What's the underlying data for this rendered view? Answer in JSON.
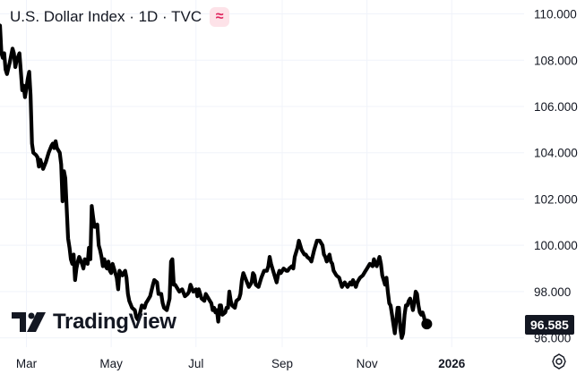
{
  "header": {
    "title": "U.S. Dollar Index · 1D · TVC",
    "badge_glyph": "≈"
  },
  "logo": {
    "text": "TradingView",
    "icon": "tradingview-logo-icon"
  },
  "price_tag": {
    "value": "96.585"
  },
  "settings": {
    "icon": "gear-icon"
  },
  "colors": {
    "line": "#000000",
    "text": "#131722",
    "grid": "#f0f3fa",
    "badge_bg": "#fde2e8",
    "badge_fg": "#e0245e"
  },
  "chart_data": {
    "type": "line",
    "title": "U.S. Dollar Index · 1D · TVC",
    "xlabel": "",
    "ylabel": "",
    "ylim": [
      95.6,
      110.6
    ],
    "xlim": [
      "2025-02-10",
      "2026-02-22"
    ],
    "yticks": [
      96,
      98,
      100,
      102,
      104,
      106,
      108,
      110
    ],
    "ytick_labels": [
      "96.000",
      "98.000",
      "100.000",
      "102.000",
      "104.000",
      "106.000",
      "108.000",
      "110.000"
    ],
    "xticks": [
      "2025-03-01",
      "2025-05-01",
      "2025-07-01",
      "2025-09-01",
      "2025-11-01",
      "2026-01-01"
    ],
    "xtick_labels": [
      "Mar",
      "May",
      "Jul",
      "Sep",
      "Nov",
      "2026"
    ],
    "bold_xtick": "2026",
    "last_value": 96.585,
    "grid": true,
    "points": [
      [
        "2025-02-10",
        109.5
      ],
      [
        "2025-02-11",
        108.3
      ],
      [
        "2025-02-12",
        108.1
      ],
      [
        "2025-02-13",
        108.3
      ],
      [
        "2025-02-14",
        107.6
      ],
      [
        "2025-02-15",
        107.4
      ],
      [
        "2025-02-17",
        107.9
      ],
      [
        "2025-02-18",
        108.2
      ],
      [
        "2025-02-19",
        108.5
      ],
      [
        "2025-02-20",
        108.3
      ],
      [
        "2025-02-21",
        107.7
      ],
      [
        "2025-02-22",
        108.0
      ],
      [
        "2025-02-24",
        108.3
      ],
      [
        "2025-02-25",
        107.5
      ],
      [
        "2025-02-26",
        106.7
      ],
      [
        "2025-02-27",
        106.9
      ],
      [
        "2025-02-28",
        106.4
      ],
      [
        "2025-03-01",
        106.8
      ],
      [
        "2025-03-02",
        107.2
      ],
      [
        "2025-03-03",
        107.5
      ],
      [
        "2025-03-04",
        106.5
      ],
      [
        "2025-03-05",
        104.4
      ],
      [
        "2025-03-06",
        104.0
      ],
      [
        "2025-03-08",
        103.9
      ],
      [
        "2025-03-09",
        103.8
      ],
      [
        "2025-03-10",
        103.4
      ],
      [
        "2025-03-11",
        103.7
      ],
      [
        "2025-03-13",
        103.3
      ],
      [
        "2025-03-15",
        103.6
      ],
      [
        "2025-03-17",
        104.0
      ],
      [
        "2025-03-19",
        104.3
      ],
      [
        "2025-03-20",
        104.4
      ],
      [
        "2025-03-21",
        104.2
      ],
      [
        "2025-03-22",
        104.5
      ],
      [
        "2025-03-23",
        104.2
      ],
      [
        "2025-03-25",
        104.0
      ],
      [
        "2025-03-26",
        103.5
      ],
      [
        "2025-03-27",
        101.9
      ],
      [
        "2025-03-28",
        103.2
      ],
      [
        "2025-03-29",
        102.9
      ],
      [
        "2025-03-31",
        100.3
      ],
      [
        "2025-04-01",
        99.9
      ],
      [
        "2025-04-02",
        99.4
      ],
      [
        "2025-04-03",
        99.2
      ],
      [
        "2025-04-04",
        99.6
      ],
      [
        "2025-04-05",
        98.5
      ],
      [
        "2025-04-06",
        99.0
      ],
      [
        "2025-04-07",
        99.3
      ],
      [
        "2025-04-08",
        99.5
      ],
      [
        "2025-04-10",
        99.2
      ],
      [
        "2025-04-11",
        99.0
      ],
      [
        "2025-04-12",
        99.4
      ],
      [
        "2025-04-14",
        99.2
      ],
      [
        "2025-04-15",
        99.9
      ],
      [
        "2025-04-16",
        99.4
      ],
      [
        "2025-04-17",
        101.7
      ],
      [
        "2025-04-18",
        101.2
      ],
      [
        "2025-04-19",
        100.8
      ],
      [
        "2025-04-20",
        100.8
      ],
      [
        "2025-04-21",
        100.9
      ],
      [
        "2025-04-22",
        100.0
      ],
      [
        "2025-04-23",
        99.8
      ],
      [
        "2025-04-24",
        99.5
      ],
      [
        "2025-04-25",
        99.1
      ],
      [
        "2025-04-26",
        99.4
      ],
      [
        "2025-04-27",
        99.1
      ],
      [
        "2025-04-28",
        99.0
      ],
      [
        "2025-04-29",
        99.3
      ],
      [
        "2025-04-30",
        98.9
      ],
      [
        "2025-05-01",
        98.8
      ],
      [
        "2025-05-02",
        99.2
      ],
      [
        "2025-05-03",
        99.0
      ],
      [
        "2025-05-05",
        98.6
      ],
      [
        "2025-05-06",
        98.1
      ],
      [
        "2025-05-07",
        98.9
      ],
      [
        "2025-05-09",
        98.7
      ],
      [
        "2025-05-11",
        98.9
      ],
      [
        "2025-05-12",
        98.6
      ],
      [
        "2025-05-13",
        97.9
      ],
      [
        "2025-05-14",
        97.6
      ],
      [
        "2025-05-16",
        97.3
      ],
      [
        "2025-05-18",
        97.2
      ],
      [
        "2025-05-19",
        96.9
      ],
      [
        "2025-05-20",
        96.8
      ],
      [
        "2025-05-21",
        96.9
      ],
      [
        "2025-05-23",
        97.4
      ],
      [
        "2025-05-25",
        97.3
      ],
      [
        "2025-05-26",
        97.5
      ],
      [
        "2025-05-27",
        97.6
      ],
      [
        "2025-05-29",
        97.8
      ],
      [
        "2025-05-31",
        98.3
      ],
      [
        "2025-06-01",
        98.5
      ],
      [
        "2025-06-03",
        98.4
      ],
      [
        "2025-06-04",
        97.9
      ],
      [
        "2025-06-06",
        97.9
      ],
      [
        "2025-06-07",
        97.5
      ],
      [
        "2025-06-08",
        97.3
      ],
      [
        "2025-06-10",
        97.2
      ],
      [
        "2025-06-12",
        97.7
      ],
      [
        "2025-06-13",
        99.3
      ],
      [
        "2025-06-14",
        99.4
      ],
      [
        "2025-06-15",
        98.3
      ],
      [
        "2025-06-16",
        98.3
      ],
      [
        "2025-06-18",
        98.1
      ],
      [
        "2025-06-19",
        98.0
      ],
      [
        "2025-06-21",
        98.1
      ],
      [
        "2025-06-23",
        97.8
      ],
      [
        "2025-06-25",
        97.9
      ],
      [
        "2025-06-26",
        98.0
      ],
      [
        "2025-06-27",
        98.3
      ],
      [
        "2025-06-29",
        98.0
      ],
      [
        "2025-07-01",
        98.1
      ],
      [
        "2025-07-02",
        97.8
      ],
      [
        "2025-07-03",
        98.1
      ],
      [
        "2025-07-05",
        97.7
      ],
      [
        "2025-07-07",
        97.6
      ],
      [
        "2025-07-08",
        97.9
      ],
      [
        "2025-07-09",
        97.8
      ],
      [
        "2025-07-11",
        97.6
      ],
      [
        "2025-07-12",
        97.5
      ],
      [
        "2025-07-13",
        97.2
      ],
      [
        "2025-07-14",
        97.3
      ],
      [
        "2025-07-15",
        97.1
      ],
      [
        "2025-07-16",
        97.2
      ],
      [
        "2025-07-17",
        96.7
      ],
      [
        "2025-07-18",
        97.4
      ],
      [
        "2025-07-19",
        97.4
      ],
      [
        "2025-07-20",
        97.0
      ],
      [
        "2025-07-22",
        97.1
      ],
      [
        "2025-07-23",
        97.3
      ],
      [
        "2025-07-24",
        97.3
      ],
      [
        "2025-07-25",
        98.0
      ],
      [
        "2025-07-26",
        97.6
      ],
      [
        "2025-07-27",
        97.4
      ],
      [
        "2025-07-29",
        97.3
      ],
      [
        "2025-07-30",
        97.6
      ],
      [
        "2025-08-01",
        97.7
      ],
      [
        "2025-08-02",
        97.9
      ],
      [
        "2025-08-03",
        98.5
      ],
      [
        "2025-08-04",
        98.8
      ],
      [
        "2025-08-06",
        98.5
      ],
      [
        "2025-08-08",
        98.2
      ],
      [
        "2025-08-10",
        98.4
      ],
      [
        "2025-08-11",
        98.8
      ],
      [
        "2025-08-12",
        98.7
      ],
      [
        "2025-08-13",
        98.3
      ],
      [
        "2025-08-15",
        98.2
      ],
      [
        "2025-08-17",
        98.6
      ],
      [
        "2025-08-19",
        98.9
      ],
      [
        "2025-08-21",
        98.9
      ],
      [
        "2025-08-22",
        99.1
      ],
      [
        "2025-08-23",
        99.5
      ],
      [
        "2025-08-24",
        99.2
      ],
      [
        "2025-08-25",
        99.0
      ],
      [
        "2025-08-27",
        98.6
      ],
      [
        "2025-08-28",
        98.4
      ],
      [
        "2025-08-29",
        98.7
      ],
      [
        "2025-08-30",
        98.9
      ],
      [
        "2025-08-31",
        98.8
      ],
      [
        "2025-09-02",
        99.0
      ],
      [
        "2025-09-04",
        98.9
      ],
      [
        "2025-09-05",
        98.9
      ],
      [
        "2025-09-06",
        99.0
      ],
      [
        "2025-09-08",
        99.1
      ],
      [
        "2025-09-09",
        99.0
      ],
      [
        "2025-09-10",
        99.5
      ],
      [
        "2025-09-12",
        99.9
      ],
      [
        "2025-09-13",
        100.2
      ],
      [
        "2025-09-15",
        99.8
      ],
      [
        "2025-09-17",
        99.6
      ],
      [
        "2025-09-18",
        99.6
      ],
      [
        "2025-09-19",
        99.5
      ],
      [
        "2025-09-21",
        99.4
      ],
      [
        "2025-09-22",
        99.3
      ],
      [
        "2025-09-24",
        99.8
      ],
      [
        "2025-09-26",
        100.2
      ],
      [
        "2025-09-28",
        100.2
      ],
      [
        "2025-09-30",
        100.0
      ],
      [
        "2025-10-01",
        99.6
      ],
      [
        "2025-10-02",
        99.5
      ],
      [
        "2025-10-03",
        99.3
      ],
      [
        "2025-10-05",
        99.6
      ],
      [
        "2025-10-06",
        99.3
      ],
      [
        "2025-10-07",
        99.2
      ],
      [
        "2025-10-08",
        98.9
      ],
      [
        "2025-10-10",
        98.7
      ],
      [
        "2025-10-12",
        98.6
      ],
      [
        "2025-10-14",
        98.2
      ],
      [
        "2025-10-16",
        98.4
      ],
      [
        "2025-10-18",
        98.2
      ],
      [
        "2025-10-19",
        98.3
      ],
      [
        "2025-10-20",
        98.4
      ],
      [
        "2025-10-21",
        98.3
      ],
      [
        "2025-10-22",
        98.5
      ],
      [
        "2025-10-24",
        98.2
      ],
      [
        "2025-10-25",
        98.4
      ],
      [
        "2025-10-26",
        98.5
      ],
      [
        "2025-10-27",
        98.6
      ],
      [
        "2025-10-29",
        98.7
      ],
      [
        "2025-10-31",
        98.9
      ],
      [
        "2025-11-01",
        99.0
      ],
      [
        "2025-11-03",
        99.2
      ],
      [
        "2025-11-05",
        99.1
      ],
      [
        "2025-11-06",
        99.4
      ],
      [
        "2025-11-07",
        99.2
      ],
      [
        "2025-11-08",
        99.1
      ],
      [
        "2025-11-10",
        99.5
      ],
      [
        "2025-11-11",
        99.2
      ],
      [
        "2025-11-12",
        98.7
      ],
      [
        "2025-11-13",
        98.5
      ],
      [
        "2025-11-14",
        98.3
      ],
      [
        "2025-11-15",
        98.6
      ],
      [
        "2025-11-16",
        98.0
      ],
      [
        "2025-11-17",
        97.5
      ],
      [
        "2025-11-18",
        97.4
      ],
      [
        "2025-11-19",
        97.0
      ],
      [
        "2025-11-20",
        96.6
      ],
      [
        "2025-11-21",
        96.2
      ],
      [
        "2025-11-22",
        96.7
      ],
      [
        "2025-11-23",
        97.3
      ],
      [
        "2025-11-24",
        97.3
      ],
      [
        "2025-11-25",
        96.4
      ],
      [
        "2025-11-26",
        96.0
      ],
      [
        "2025-11-27",
        96.2
      ],
      [
        "2025-11-28",
        97.0
      ],
      [
        "2025-11-29",
        97.4
      ],
      [
        "2025-11-30",
        97.4
      ],
      [
        "2025-12-01",
        97.6
      ],
      [
        "2025-12-02",
        97.7
      ],
      [
        "2025-12-03",
        97.5
      ],
      [
        "2025-12-04",
        97.2
      ],
      [
        "2025-12-05",
        97.5
      ],
      [
        "2025-12-06",
        98.0
      ],
      [
        "2025-12-07",
        97.9
      ],
      [
        "2025-12-08",
        97.4
      ],
      [
        "2025-12-09",
        97.1
      ],
      [
        "2025-12-10",
        97.0
      ],
      [
        "2025-12-11",
        97.1
      ],
      [
        "2025-12-12",
        96.9
      ],
      [
        "2025-12-13",
        96.6
      ],
      [
        "2025-12-14",
        96.6
      ]
    ]
  }
}
